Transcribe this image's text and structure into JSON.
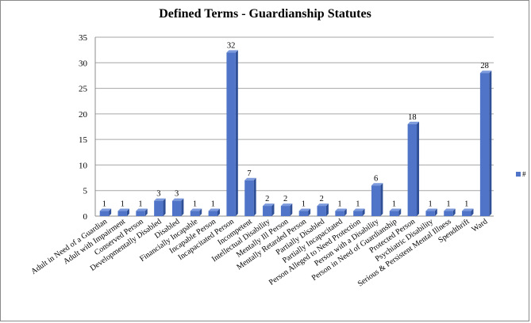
{
  "chart_data": {
    "type": "bar",
    "title": "Defined Terms - Guardianship Statutes",
    "xlabel": "",
    "ylabel": "",
    "ylim": [
      0,
      35
    ],
    "yticks": [
      0,
      5,
      10,
      15,
      20,
      25,
      30,
      35
    ],
    "grid": true,
    "legend_position": "right",
    "bar_color": "#4f74c8",
    "categories": [
      "Adult in Need of a Guardian",
      "Adult with Impairment",
      "Conserved Person",
      "Developmentally Disabled",
      "Disabled",
      "Financially Incapable",
      "Incapable Person",
      "Incapacitated Person",
      "Incompetent",
      "Intellectual Disability",
      "Mentally Ill Person",
      "Mentally Retarded Person",
      "Partially Disabled",
      "Partially Incapacitated",
      "Person Alleged to Need Protection",
      "Person with a Disability",
      "Person in Need of Guardianship",
      "Protected Person",
      "Psychiatric Disability",
      "Serious & Persistent Mental Illness",
      "Spendthrift",
      "Ward"
    ],
    "series": [
      {
        "name": "#",
        "values": [
          1,
          1,
          1,
          3,
          3,
          1,
          1,
          32,
          7,
          2,
          2,
          1,
          2,
          1,
          1,
          6,
          1,
          18,
          1,
          1,
          1,
          28
        ]
      }
    ]
  }
}
